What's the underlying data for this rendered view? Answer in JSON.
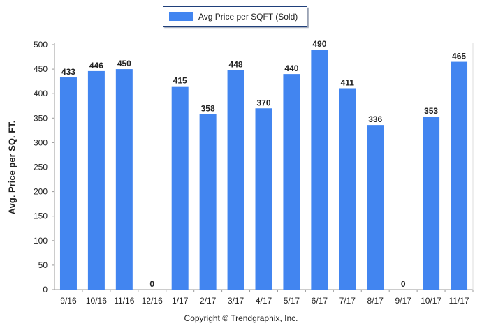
{
  "chart_data": {
    "type": "bar",
    "categories": [
      "9/16",
      "10/16",
      "11/16",
      "12/16",
      "1/17",
      "2/17",
      "3/17",
      "4/17",
      "5/17",
      "6/17",
      "7/17",
      "8/17",
      "9/17",
      "10/17",
      "11/17"
    ],
    "series": [
      {
        "name": "Avg Price per SQFT (Sold)",
        "values": [
          433,
          446,
          450,
          0,
          415,
          358,
          448,
          370,
          440,
          490,
          411,
          336,
          0,
          353,
          465
        ]
      }
    ],
    "data_labels": [
      "433",
      "446",
      "450",
      "0",
      "415",
      "358",
      "448",
      "370",
      "440",
      "490",
      "411",
      "336",
      "0",
      "353",
      "465"
    ],
    "xlabel": "",
    "ylabel": "Avg. Price per SQ. FT.",
    "ylim": [
      0,
      500
    ],
    "yticks": [
      0,
      50,
      100,
      150,
      200,
      250,
      300,
      350,
      400,
      450,
      500
    ],
    "grid": false,
    "legend": "top-center",
    "footer": "Copyright © Trendgraphix, Inc."
  },
  "colors": {
    "bar": "#4285f0",
    "axis": "#999999",
    "text": "#222222"
  }
}
